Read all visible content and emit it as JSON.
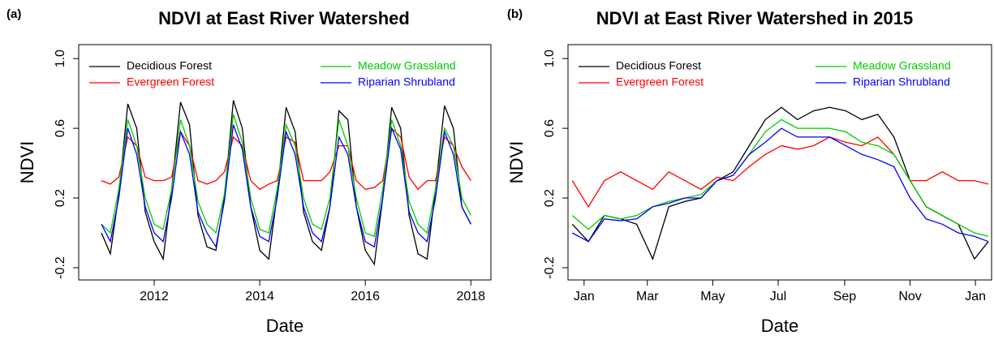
{
  "chart_data": [
    {
      "type": "line",
      "panel_label": "(a)",
      "title": "NDVI at East River Watershed",
      "xlabel": "Date",
      "ylabel": "NDVI",
      "x": [
        2011,
        2011.17,
        2011.33,
        2011.5,
        2011.67,
        2011.83,
        2012,
        2012.17,
        2012.33,
        2012.5,
        2012.67,
        2012.83,
        2013,
        2013.17,
        2013.33,
        2013.5,
        2013.67,
        2013.83,
        2014,
        2014.17,
        2014.33,
        2014.5,
        2014.67,
        2014.83,
        2015,
        2015.17,
        2015.33,
        2015.5,
        2015.67,
        2015.83,
        2016,
        2016.17,
        2016.33,
        2016.5,
        2016.67,
        2016.83,
        2017,
        2017.17,
        2017.33,
        2017.5,
        2017.67,
        2017.83,
        2018
      ],
      "series": [
        {
          "name": "Decidious Forest",
          "color": "#000000",
          "values": [
            0.0,
            -0.12,
            0.22,
            0.74,
            0.6,
            0.12,
            -0.05,
            -0.15,
            0.25,
            0.75,
            0.62,
            0.1,
            -0.08,
            -0.1,
            0.2,
            0.76,
            0.6,
            0.15,
            -0.1,
            -0.15,
            0.22,
            0.72,
            0.58,
            0.12,
            -0.05,
            -0.1,
            0.15,
            0.7,
            0.65,
            0.15,
            -0.1,
            -0.18,
            0.2,
            0.72,
            0.6,
            0.1,
            -0.12,
            -0.15,
            0.25,
            0.73,
            0.6,
            0.15,
            0.05
          ]
        },
        {
          "name": "Evergreen Forest",
          "color": "#ff0000",
          "values": [
            0.3,
            0.28,
            0.32,
            0.55,
            0.5,
            0.32,
            0.3,
            0.3,
            0.32,
            0.58,
            0.5,
            0.3,
            0.28,
            0.3,
            0.35,
            0.55,
            0.5,
            0.3,
            0.25,
            0.28,
            0.3,
            0.55,
            0.52,
            0.3,
            0.3,
            0.3,
            0.35,
            0.5,
            0.5,
            0.3,
            0.25,
            0.26,
            0.3,
            0.6,
            0.55,
            0.32,
            0.25,
            0.3,
            0.3,
            0.55,
            0.5,
            0.38,
            0.3
          ]
        },
        {
          "name": "Meadow Grassland",
          "color": "#00cc00",
          "values": [
            0.05,
            0.0,
            0.25,
            0.65,
            0.5,
            0.2,
            0.05,
            0.02,
            0.25,
            0.65,
            0.5,
            0.18,
            0.05,
            0.0,
            0.22,
            0.68,
            0.52,
            0.2,
            0.02,
            0.0,
            0.25,
            0.62,
            0.5,
            0.2,
            0.05,
            0.02,
            0.2,
            0.65,
            0.5,
            0.2,
            0.0,
            -0.02,
            0.25,
            0.65,
            0.5,
            0.18,
            0.05,
            0.0,
            0.25,
            0.6,
            0.5,
            0.2,
            0.1
          ]
        },
        {
          "name": "Riparian Shrubland",
          "color": "#0000ff",
          "values": [
            0.05,
            -0.05,
            0.2,
            0.6,
            0.45,
            0.15,
            0.0,
            -0.05,
            0.2,
            0.58,
            0.45,
            0.12,
            0.0,
            -0.08,
            0.18,
            0.62,
            0.48,
            0.15,
            -0.02,
            -0.05,
            0.2,
            0.58,
            0.45,
            0.15,
            0.0,
            -0.05,
            0.15,
            0.55,
            0.45,
            0.15,
            -0.05,
            -0.08,
            0.2,
            0.6,
            0.48,
            0.12,
            0.0,
            -0.05,
            0.2,
            0.58,
            0.45,
            0.15,
            0.05
          ]
        }
      ],
      "xlim": [
        2010.57,
        2018.38
      ],
      "xticks": [
        2012,
        2014,
        2016,
        2018
      ],
      "ylim": [
        -0.27,
        1.08
      ],
      "yticks": [
        -0.2,
        0.2,
        0.6,
        {
          "value": 1,
          "label": "1.0"
        }
      ]
    },
    {
      "type": "line",
      "panel_label": "(b)",
      "title": "NDVI at East River Watershed in 2015",
      "xlabel": "Date",
      "ylabel": "NDVI",
      "x": [
        -10,
        5,
        20,
        35,
        50,
        65,
        80,
        95,
        110,
        125,
        140,
        155,
        170,
        185,
        200,
        215,
        230,
        245,
        260,
        275,
        290,
        305,
        320,
        335,
        350,
        365,
        378
      ],
      "series": [
        {
          "name": "Decidious Forest",
          "color": "#000000",
          "values": [
            0.05,
            -0.05,
            0.1,
            0.08,
            0.05,
            -0.15,
            0.15,
            0.18,
            0.2,
            0.3,
            0.35,
            0.5,
            0.65,
            0.72,
            0.65,
            0.7,
            0.72,
            0.7,
            0.65,
            0.68,
            0.55,
            0.3,
            0.15,
            0.1,
            0.05,
            -0.15,
            -0.05
          ]
        },
        {
          "name": "Evergreen Forest",
          "color": "#ff0000",
          "values": [
            0.3,
            0.15,
            0.3,
            0.35,
            0.3,
            0.25,
            0.35,
            0.3,
            0.25,
            0.32,
            0.3,
            0.38,
            0.45,
            0.5,
            0.48,
            0.5,
            0.55,
            0.52,
            0.5,
            0.55,
            0.45,
            0.3,
            0.3,
            0.35,
            0.3,
            0.3,
            0.28
          ]
        },
        {
          "name": "Meadow Grassland",
          "color": "#00cc00",
          "values": [
            0.1,
            0.02,
            0.1,
            0.08,
            0.1,
            0.15,
            0.18,
            0.2,
            0.22,
            0.3,
            0.33,
            0.45,
            0.58,
            0.65,
            0.6,
            0.6,
            0.6,
            0.58,
            0.52,
            0.5,
            0.45,
            0.3,
            0.15,
            0.1,
            0.05,
            0.0,
            -0.02
          ]
        },
        {
          "name": "Riparian Shrubland",
          "color": "#0000ff",
          "values": [
            0.0,
            -0.05,
            0.08,
            0.07,
            0.08,
            0.15,
            0.17,
            0.2,
            0.2,
            0.3,
            0.33,
            0.45,
            0.52,
            0.6,
            0.55,
            0.55,
            0.55,
            0.5,
            0.45,
            0.42,
            0.38,
            0.2,
            0.08,
            0.05,
            0.0,
            -0.02,
            -0.05
          ]
        }
      ],
      "xlim": [
        -14,
        381
      ],
      "xticks": [
        {
          "value": 1,
          "label": "Jan"
        },
        {
          "value": 60,
          "label": "Mar"
        },
        {
          "value": 121,
          "label": "May"
        },
        {
          "value": 182,
          "label": "Jul"
        },
        {
          "value": 244,
          "label": "Sep"
        },
        {
          "value": 305,
          "label": "Nov"
        },
        {
          "value": 366,
          "label": "Jan"
        }
      ],
      "ylim": [
        -0.27,
        1.08
      ],
      "yticks": [
        -0.2,
        0.2,
        0.6,
        {
          "value": 1,
          "label": "1.0"
        }
      ]
    }
  ]
}
